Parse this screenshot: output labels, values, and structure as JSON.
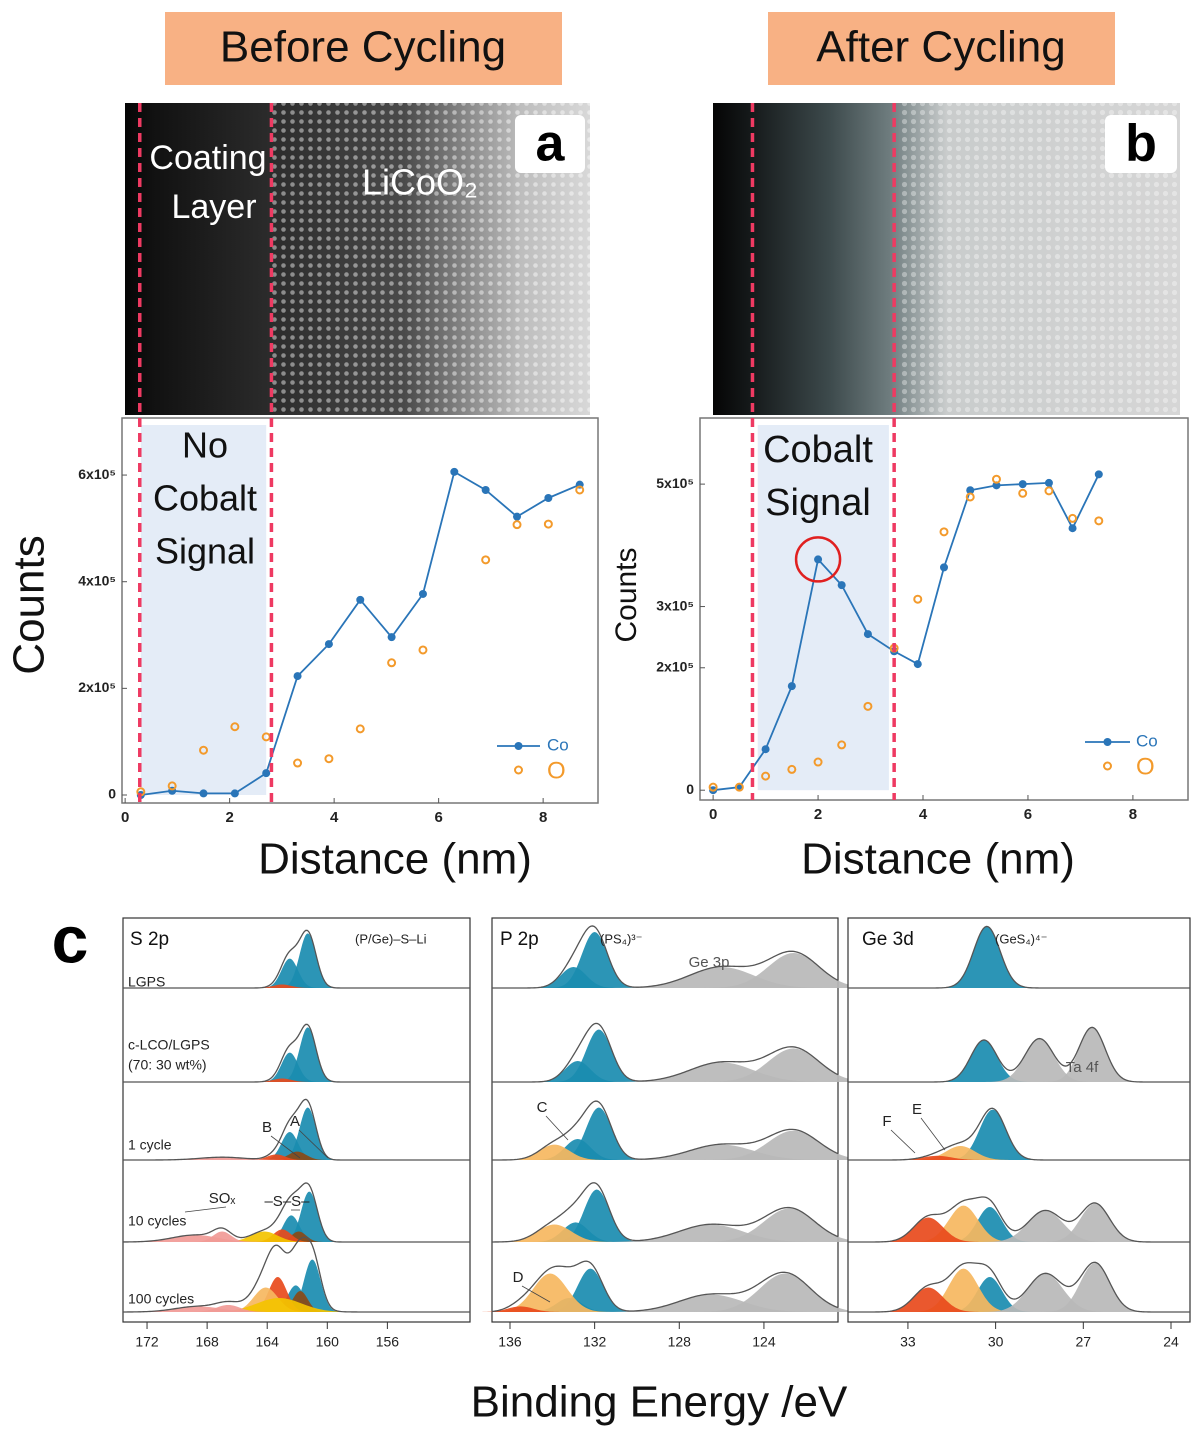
{
  "headers": [
    "Before Cycling",
    "After Cycling"
  ],
  "images": [
    {
      "panel": "a",
      "labels": [
        "Coating",
        "Layer"
      ],
      "material": "LiCoO₂"
    },
    {
      "panel": "b"
    }
  ],
  "panel_c_label": "c",
  "xps_xlabel": "Binding Energy /eV",
  "chart_data": [
    {
      "type": "line",
      "xlabel": "Distance (nm)",
      "ylabel": "Counts",
      "xlim": [
        -0.06,
        9.05
      ],
      "ylim": [
        -15000,
        707000
      ],
      "xticks": [
        0,
        2,
        4,
        6,
        8
      ],
      "yticks": [
        0,
        {
          "value": 200000,
          "label": "2x10⁵"
        },
        {
          "value": 400000,
          "label": "4x10⁵"
        },
        {
          "value": 600000,
          "label": "6x10⁵"
        }
      ],
      "annotation": [
        "No",
        "Cobalt",
        "Signal"
      ],
      "band": [
        0.3,
        2.7
      ],
      "dividers": [
        0.28,
        2.8
      ],
      "series": [
        {
          "name": "Co",
          "color": "#2a75b8",
          "style": "line",
          "x": [
            0.3,
            0.9,
            1.5,
            2.1,
            2.7,
            3.3,
            3.9,
            4.5,
            5.1,
            5.7,
            6.3,
            6.9,
            7.5,
            8.1,
            8.7
          ],
          "values": [
            0,
            8000,
            3000,
            3000,
            41000,
            223000,
            283000,
            366000,
            296000,
            377000,
            606000,
            572000,
            522000,
            557000,
            582000
          ]
        },
        {
          "name": "O",
          "color": "#f39a2b",
          "style": "markers",
          "x": [
            0.3,
            0.9,
            1.5,
            2.1,
            2.7,
            3.3,
            3.9,
            4.5,
            5.1,
            5.7,
            6.3,
            6.9,
            7.5,
            8.1,
            8.7
          ],
          "values": [
            6000,
            17000,
            84000,
            128000,
            109000,
            60000,
            68000,
            124000,
            248000,
            272000,
            null,
            441000,
            507000,
            508000,
            572000
          ]
        }
      ]
    },
    {
      "type": "line",
      "xlabel": "Distance (nm)",
      "ylabel": "Counts",
      "xlim": [
        -0.25,
        9.05
      ],
      "ylim": [
        -16000,
        608000
      ],
      "xticks": [
        0,
        2,
        4,
        6,
        8
      ],
      "yticks": [
        0,
        {
          "value": 200000,
          "label": "2x10⁵"
        },
        {
          "value": 300000,
          "label": "3x10⁵"
        },
        {
          "value": 500000,
          "label": "5x10⁵"
        }
      ],
      "annotation": [
        "Cobalt",
        "Signal"
      ],
      "band": [
        0.85,
        3.35
      ],
      "dividers": [
        0.75,
        3.45
      ],
      "series": [
        {
          "name": "Co",
          "color": "#2a75b8",
          "style": "line",
          "x": [
            0,
            0.5,
            1.0,
            1.5,
            2.0,
            2.45,
            2.95,
            3.45,
            3.9,
            4.4,
            4.9,
            5.4,
            5.9,
            6.4,
            6.85,
            7.35
          ],
          "values": [
            0,
            5000,
            67000,
            170000,
            377000,
            335000,
            255000,
            227000,
            206000,
            364000,
            490000,
            498000,
            500000,
            502000,
            428000,
            516000
          ]
        },
        {
          "name": "O",
          "color": "#f39a2b",
          "style": "markers",
          "x": [
            0,
            0.5,
            1.0,
            1.5,
            2.0,
            2.45,
            2.95,
            3.45,
            3.9,
            4.4,
            4.9,
            5.4,
            5.9,
            6.4,
            6.85,
            7.35
          ],
          "values": [
            5000,
            5000,
            23000,
            34000,
            46000,
            74000,
            137000,
            232000,
            312000,
            422000,
            479000,
            508000,
            485000,
            489000,
            444000,
            440000
          ]
        }
      ]
    },
    {
      "type": "xps",
      "title": "S 2p",
      "species": "(P/Ge)–S–Li",
      "xlim": [
        173.6,
        150.5
      ],
      "xticks": [
        172,
        168,
        164,
        160,
        156
      ],
      "annotations": [
        "B",
        "A",
        "SOₓ",
        "–S–S–"
      ],
      "rows": [
        {
          "label": [
            "LGPS"
          ],
          "peaks": [
            {
              "center": 161.3,
              "height": 0.78,
              "width": 0.55,
              "color": "#1a8cb0"
            },
            {
              "center": 162.5,
              "height": 0.42,
              "width": 0.55,
              "color": "#1a8cb0"
            },
            {
              "center": 163.0,
              "height": 0.05,
              "width": 0.6,
              "color": "#e84a1c"
            }
          ]
        },
        {
          "label": [
            "c-LCO/LGPS",
            "(70: 30 wt%)"
          ],
          "peaks": [
            {
              "center": 161.3,
              "height": 0.78,
              "width": 0.55,
              "color": "#1a8cb0"
            },
            {
              "center": 162.5,
              "height": 0.42,
              "width": 0.55,
              "color": "#1a8cb0"
            },
            {
              "center": 163.0,
              "height": 0.05,
              "width": 0.6,
              "color": "#e84a1c"
            }
          ]
        },
        {
          "label": [
            "1 cycle"
          ],
          "peaks": [
            {
              "center": 161.3,
              "height": 0.75,
              "width": 0.55,
              "color": "#1a8cb0"
            },
            {
              "center": 162.5,
              "height": 0.4,
              "width": 0.55,
              "color": "#1a8cb0"
            },
            {
              "center": 162.0,
              "height": 0.12,
              "width": 0.6,
              "color": "#8a4a16"
            },
            {
              "center": 163.4,
              "height": 0.08,
              "width": 0.6,
              "color": "#e84a1c"
            },
            {
              "center": 167.0,
              "height": 0.04,
              "width": 1.5,
              "color": "#f19a96"
            }
          ]
        },
        {
          "label": [
            "10 cycles"
          ],
          "peaks": [
            {
              "center": 161.2,
              "height": 0.72,
              "width": 0.55,
              "color": "#1a8cb0"
            },
            {
              "center": 162.4,
              "height": 0.38,
              "width": 0.55,
              "color": "#1a8cb0"
            },
            {
              "center": 161.9,
              "height": 0.15,
              "width": 0.5,
              "color": "#8a4a16"
            },
            {
              "center": 163.0,
              "height": 0.18,
              "width": 0.6,
              "color": "#e84a1c"
            },
            {
              "center": 164.2,
              "height": 0.15,
              "width": 0.9,
              "color": "#f3c300"
            },
            {
              "center": 167.0,
              "height": 0.15,
              "width": 0.6,
              "color": "#f19a96"
            },
            {
              "center": 168.8,
              "height": 0.1,
              "width": 1.5,
              "color": "#f19a96"
            }
          ]
        },
        {
          "label": [
            "100 cycles"
          ],
          "peaks": [
            {
              "center": 161.0,
              "height": 0.75,
              "width": 0.55,
              "color": "#1a8cb0"
            },
            {
              "center": 162.1,
              "height": 0.38,
              "width": 0.55,
              "color": "#1a8cb0"
            },
            {
              "center": 161.8,
              "height": 0.3,
              "width": 0.5,
              "color": "#8a4a16"
            },
            {
              "center": 163.3,
              "height": 0.5,
              "width": 0.6,
              "color": "#e84a1c"
            },
            {
              "center": 164.1,
              "height": 0.35,
              "width": 0.8,
              "color": "#f6b760"
            },
            {
              "center": 163.2,
              "height": 0.2,
              "width": 1.5,
              "color": "#f3c300"
            },
            {
              "center": 166.6,
              "height": 0.1,
              "width": 0.8,
              "color": "#f19a96"
            },
            {
              "center": 168.6,
              "height": 0.08,
              "width": 1.5,
              "color": "#f19a96"
            }
          ]
        }
      ]
    },
    {
      "type": "xps",
      "title": "P 2p",
      "species": "(PS₄)³⁻",
      "xlim": [
        136.85,
        120.5
      ],
      "xticks": [
        136,
        132,
        128,
        124
      ],
      "annotations": [
        "Ge 3p",
        "C",
        "D"
      ],
      "rows": [
        {
          "peaks": [
            {
              "center": 132.0,
              "height": 0.8,
              "width": 0.6,
              "color": "#1a8cb0"
            },
            {
              "center": 133.0,
              "height": 0.3,
              "width": 0.6,
              "color": "#1a8cb0"
            },
            {
              "center": 126.0,
              "height": 0.3,
              "width": 1.5,
              "color": "#b9b9b9"
            },
            {
              "center": 122.6,
              "height": 0.5,
              "width": 1.2,
              "color": "#b9b9b9"
            }
          ]
        },
        {
          "peaks": [
            {
              "center": 131.8,
              "height": 0.75,
              "width": 0.6,
              "color": "#1a8cb0"
            },
            {
              "center": 132.8,
              "height": 0.3,
              "width": 0.6,
              "color": "#1a8cb0"
            },
            {
              "center": 126.0,
              "height": 0.28,
              "width": 1.5,
              "color": "#b9b9b9"
            },
            {
              "center": 122.6,
              "height": 0.48,
              "width": 1.2,
              "color": "#b9b9b9"
            }
          ]
        },
        {
          "peaks": [
            {
              "center": 131.8,
              "height": 0.75,
              "width": 0.6,
              "color": "#1a8cb0"
            },
            {
              "center": 132.8,
              "height": 0.3,
              "width": 0.6,
              "color": "#1a8cb0"
            },
            {
              "center": 133.9,
              "height": 0.22,
              "width": 0.7,
              "color": "#f6b760"
            },
            {
              "center": 126.0,
              "height": 0.22,
              "width": 1.5,
              "color": "#b9b9b9"
            },
            {
              "center": 122.6,
              "height": 0.42,
              "width": 1.2,
              "color": "#b9b9b9"
            }
          ]
        },
        {
          "peaks": [
            {
              "center": 131.9,
              "height": 0.75,
              "width": 0.6,
              "color": "#1a8cb0"
            },
            {
              "center": 132.9,
              "height": 0.28,
              "width": 0.6,
              "color": "#1a8cb0"
            },
            {
              "center": 133.9,
              "height": 0.25,
              "width": 0.8,
              "color": "#f6b760"
            },
            {
              "center": 126.5,
              "height": 0.25,
              "width": 1.5,
              "color": "#b9b9b9"
            },
            {
              "center": 122.8,
              "height": 0.48,
              "width": 1.2,
              "color": "#b9b9b9"
            }
          ]
        },
        {
          "peaks": [
            {
              "center": 132.2,
              "height": 0.62,
              "width": 0.6,
              "color": "#1a8cb0"
            },
            {
              "center": 133.2,
              "height": 0.2,
              "width": 0.6,
              "color": "#1a8cb0"
            },
            {
              "center": 134.1,
              "height": 0.55,
              "width": 0.8,
              "color": "#f6b760"
            },
            {
              "center": 135.5,
              "height": 0.08,
              "width": 0.6,
              "color": "#e84a1c"
            },
            {
              "center": 126.5,
              "height": 0.25,
              "width": 1.5,
              "color": "#b9b9b9"
            },
            {
              "center": 123.0,
              "height": 0.55,
              "width": 1.2,
              "color": "#b9b9b9"
            }
          ]
        }
      ]
    },
    {
      "type": "xps",
      "title": "Ge 3d",
      "species": "(GeS₄)⁴⁻",
      "xlim": [
        35.05,
        23.35
      ],
      "xticks": [
        33,
        30,
        27,
        24
      ],
      "annotations": [
        "Ta 4f",
        "F",
        "E"
      ],
      "rows": [
        {
          "peaks": [
            {
              "center": 30.3,
              "height": 0.88,
              "width": 0.45,
              "color": "#1a8cb0"
            }
          ]
        },
        {
          "peaks": [
            {
              "center": 30.4,
              "height": 0.6,
              "width": 0.45,
              "color": "#1a8cb0"
            },
            {
              "center": 28.5,
              "height": 0.62,
              "width": 0.5,
              "color": "#b9b9b9"
            },
            {
              "center": 26.7,
              "height": 0.78,
              "width": 0.45,
              "color": "#b9b9b9"
            }
          ]
        },
        {
          "peaks": [
            {
              "center": 30.1,
              "height": 0.72,
              "width": 0.45,
              "color": "#1a8cb0"
            },
            {
              "center": 31.2,
              "height": 0.2,
              "width": 0.5,
              "color": "#f6b760"
            },
            {
              "center": 32.0,
              "height": 0.06,
              "width": 0.5,
              "color": "#e84a1c"
            }
          ]
        },
        {
          "peaks": [
            {
              "center": 30.2,
              "height": 0.5,
              "width": 0.42,
              "color": "#1a8cb0"
            },
            {
              "center": 31.1,
              "height": 0.52,
              "width": 0.5,
              "color": "#f6b760"
            },
            {
              "center": 32.3,
              "height": 0.35,
              "width": 0.5,
              "color": "#e84a1c"
            },
            {
              "center": 28.3,
              "height": 0.45,
              "width": 0.6,
              "color": "#b9b9b9"
            },
            {
              "center": 26.6,
              "height": 0.55,
              "width": 0.5,
              "color": "#b9b9b9"
            }
          ]
        },
        {
          "peaks": [
            {
              "center": 30.2,
              "height": 0.5,
              "width": 0.42,
              "color": "#1a8cb0"
            },
            {
              "center": 31.1,
              "height": 0.62,
              "width": 0.5,
              "color": "#f6b760"
            },
            {
              "center": 32.3,
              "height": 0.35,
              "width": 0.5,
              "color": "#e84a1c"
            },
            {
              "center": 28.3,
              "height": 0.55,
              "width": 0.6,
              "color": "#b9b9b9"
            },
            {
              "center": 26.6,
              "height": 0.7,
              "width": 0.5,
              "color": "#b9b9b9"
            }
          ]
        }
      ]
    }
  ]
}
